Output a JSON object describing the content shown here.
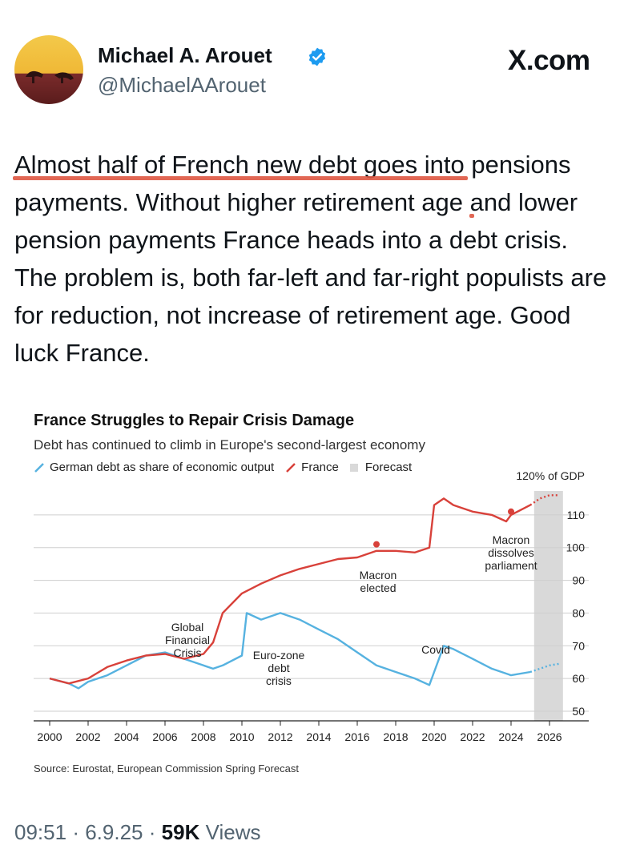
{
  "author": {
    "name": "Michael A. Arouet",
    "handle": "@MichaelAArouet",
    "verified": true,
    "verified_color": "#1d9bf0"
  },
  "site_label": "X.com",
  "post": {
    "highlighted_text": "Almost half of French new debt goes into pensions payments.",
    "highlight_line1": "Almost half of French new debt goes into",
    "highlight_line2": "pensions payments.",
    "rest_text": " Without higher retirement age and lower pension payments France heads into a debt crisis. The problem is, both far-left and far-right populists are for reduction, not increase of retirement age. Good luck France.",
    "highlight_color": "#de5641"
  },
  "chart": {
    "title": "France Struggles to Repair Crisis Damage",
    "subtitle": "Debt has continued to climb in Europe's second-largest economy",
    "legend": {
      "germany": "German debt as share of economic output",
      "france": "France",
      "forecast": "Forecast"
    },
    "unit_label": "120% of GDP",
    "source": "Source: Eurostat, European Commission Spring Forecast"
  },
  "chart_data": {
    "type": "line",
    "title": "France Struggles to Repair Crisis Damage",
    "subtitle": "Debt has continued to climb in Europe's second-largest economy",
    "xlabel": "",
    "ylabel": "",
    "xlim": [
      2000,
      2027
    ],
    "ylim": [
      50,
      120
    ],
    "x_ticks": [
      "2000",
      "2002",
      "2004",
      "2006",
      "2008",
      "2010",
      "2012",
      "2014",
      "2016",
      "2018",
      "2020",
      "2022",
      "2024",
      "2026"
    ],
    "y_ticks": [
      "50",
      "60",
      "70",
      "80",
      "90",
      "100",
      "110",
      "120% of GDP"
    ],
    "grid": true,
    "colors": {
      "germany": "#56b2e0",
      "france": "#d8413a",
      "forecast": "#d9d9d9"
    },
    "forecast_range": [
      2025.2,
      2026.7
    ],
    "series": [
      {
        "name": "German debt as share of economic output",
        "x": [
          2000,
          2001,
          2001.5,
          2002,
          2003,
          2004,
          2005,
          2006,
          2007,
          2008,
          2008.5,
          2009,
          2010,
          2010.25,
          2011,
          2012,
          2013,
          2014,
          2015,
          2016,
          2017,
          2018,
          2019,
          2019.75,
          2020,
          2020.5,
          2021,
          2022,
          2023,
          2024,
          2025
        ],
        "y": [
          60,
          58.5,
          57,
          59,
          61,
          64,
          67,
          68,
          66,
          64,
          63,
          64,
          67,
          80,
          78,
          80,
          78,
          75,
          72,
          68,
          64,
          62,
          60,
          58,
          62,
          70,
          69,
          66,
          63,
          61,
          62
        ],
        "forecast_x": [
          2025,
          2025.5,
          2026,
          2026.5
        ],
        "forecast_y": [
          62,
          63,
          64,
          64.5
        ]
      },
      {
        "name": "France",
        "x": [
          2000,
          2001,
          2002,
          2003,
          2004,
          2005,
          2006,
          2007,
          2008,
          2008.5,
          2009,
          2010,
          2011,
          2012,
          2013,
          2014,
          2015,
          2016,
          2017,
          2018,
          2019,
          2019.75,
          2020,
          2020.5,
          2021,
          2022,
          2023,
          2023.75,
          2024,
          2025
        ],
        "y": [
          60,
          58.5,
          60,
          63.5,
          65.5,
          67,
          67.5,
          66,
          67.5,
          71,
          80,
          86,
          89,
          91.5,
          93.5,
          95,
          96.5,
          97,
          99,
          99,
          98.5,
          100,
          113,
          115,
          113,
          111,
          110,
          108,
          110,
          113
        ],
        "forecast_x": [
          2025,
          2025.5,
          2026,
          2026.5
        ],
        "forecast_y": [
          113,
          115,
          116,
          116
        ]
      }
    ],
    "annotations": [
      {
        "text": "Global Financial Crisis",
        "x": 2008.3
      },
      {
        "text": "Euro-zone debt crisis",
        "x": 2011.5
      },
      {
        "text": "Macron elected",
        "x": 2017
      },
      {
        "text": "Covid",
        "x": 2020.5
      },
      {
        "text": "Macron dissolves parliament",
        "x": 2024.3
      }
    ]
  },
  "annotation_lines": {
    "gfc": [
      "Global",
      "Financial",
      "Crisis"
    ],
    "euro": [
      "Euro-zone",
      "debt",
      "crisis"
    ],
    "macron_elected": [
      "Macron",
      "elected"
    ],
    "covid": [
      "Covid"
    ],
    "macron_dissolves": [
      "Macron",
      "dissolves",
      "parliament"
    ]
  },
  "footer": {
    "time": "09:51",
    "date": "6.9.25",
    "views_count": "59K",
    "views_label": "Views",
    "separator": "·"
  }
}
